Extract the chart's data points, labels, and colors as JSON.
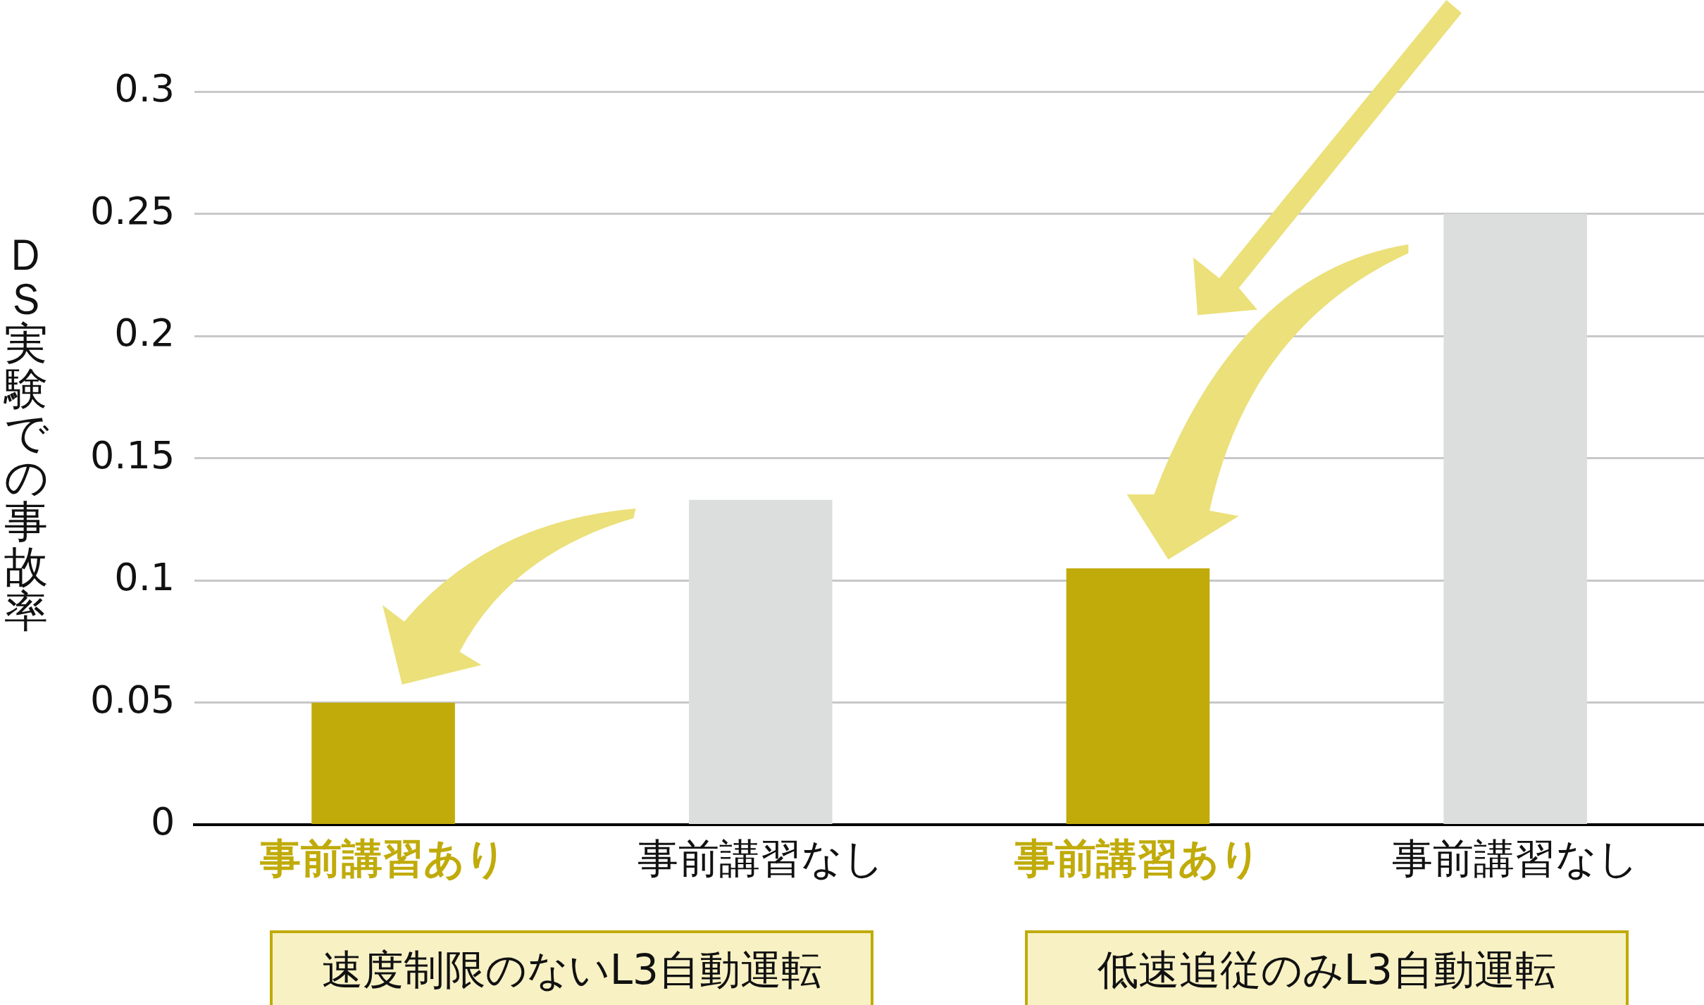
{
  "chart_data": {
    "type": "bar",
    "ylabel": "ＤＳ実験での事故率",
    "categories": [
      "事前講習あり",
      "事前講習なし",
      "事前講習あり",
      "事前講習なし"
    ],
    "values": [
      0.05,
      0.133,
      0.105,
      0.25
    ],
    "colors": [
      "#c0ab0a",
      "#dcdedd",
      "#c0ab0a",
      "#dcdedd"
    ],
    "ylim": [
      0,
      0.3
    ],
    "yticks": [
      0,
      0.05,
      0.1,
      0.15,
      0.2,
      0.25,
      0.3
    ],
    "grid": "y",
    "annotations": [
      "速度制限のないL3自動運転",
      "低速追従のみL3自動運転"
    ]
  }
}
